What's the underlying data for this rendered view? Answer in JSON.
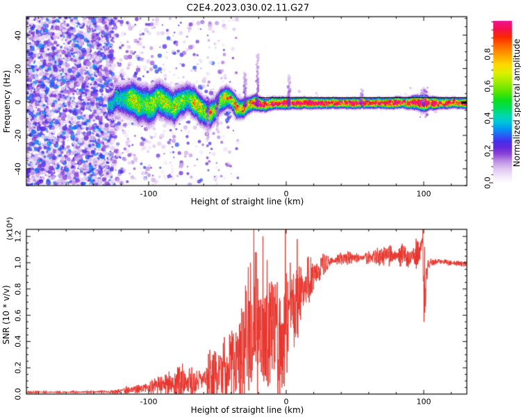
{
  "title": "C2E4.2023.030.02.11.G27",
  "colors": {
    "background": "#ffffff",
    "axis": "#000000",
    "snr_line_red": "#e8342c",
    "zero_trace_black": "#000000",
    "noise_purple": "#7a2fd2"
  },
  "top_plot": {
    "ylabel": "Frequency (Hz)",
    "xlabel": "Height of straight line (km)",
    "xlim": [
      -189,
      131
    ],
    "ylim": [
      -50,
      51
    ],
    "xticks_major": [
      -100,
      0,
      100
    ],
    "xtick_labels": [
      "-100",
      "0",
      "100"
    ],
    "xtick_minor_step": 20,
    "yticks_major": [
      -40,
      -20,
      0,
      20,
      40
    ],
    "ytick_labels": [
      "-40",
      "-20",
      "0",
      "20",
      "40"
    ],
    "ytick_minor_step": 5
  },
  "colorbar": {
    "label": "Normalized spectral amplitude",
    "tick_values": [
      0.0,
      0.2,
      0.4,
      0.6,
      0.8
    ],
    "tick_labels": [
      "0.0",
      "0.2",
      "0.4",
      "0.6",
      "0.8"
    ],
    "minor_step": 0.05,
    "range": [
      0,
      1
    ],
    "stops": [
      [
        0.0,
        "#ffffff"
      ],
      [
        0.04,
        "#f4ebfa"
      ],
      [
        0.09,
        "#dfc6f1"
      ],
      [
        0.14,
        "#b98ae3"
      ],
      [
        0.18,
        "#8f46d8"
      ],
      [
        0.22,
        "#6428dc"
      ],
      [
        0.26,
        "#4530ee"
      ],
      [
        0.3,
        "#2565f5"
      ],
      [
        0.34,
        "#009cf0"
      ],
      [
        0.38,
        "#00c8da"
      ],
      [
        0.42,
        "#00d8a8"
      ],
      [
        0.46,
        "#00dc60"
      ],
      [
        0.51,
        "#0ae020"
      ],
      [
        0.56,
        "#52e400"
      ],
      [
        0.62,
        "#9cec00"
      ],
      [
        0.68,
        "#dff000"
      ],
      [
        0.73,
        "#ffd800"
      ],
      [
        0.79,
        "#ffa000"
      ],
      [
        0.85,
        "#ff6400"
      ],
      [
        0.9,
        "#fa2800"
      ],
      [
        0.95,
        "#f5104c"
      ],
      [
        1.0,
        "#ee1492"
      ]
    ]
  },
  "bottom_plot": {
    "ylabel": "SNR (10 * v/v)",
    "y_unit": "(x10⁴)",
    "xlabel": "Height of straight line (km)",
    "xlim": [
      -189,
      131
    ],
    "ylim": [
      0,
      1.254
    ],
    "xticks_major": [
      -100,
      0,
      100
    ],
    "xtick_labels": [
      "-100",
      "0",
      "100"
    ],
    "xtick_minor_step": 20,
    "yticks_major": [
      0.0,
      0.2,
      0.4,
      0.6,
      0.8,
      1.0,
      1.2
    ],
    "ytick_labels": [
      "0.0",
      "0.2",
      "0.4",
      "0.6",
      "0.8",
      "1.0",
      "1.2"
    ],
    "ytick_minor_step": 0.05
  },
  "chart_data": [
    {
      "type": "heatmap",
      "title": "C2E4.2023.030.02.11.G27",
      "xlabel": "Height of straight line (km)",
      "ylabel": "Frequency (Hz)",
      "xlim": [
        -189,
        131
      ],
      "ylim": [
        -50,
        51
      ],
      "grid": false,
      "colorbar_label": "Normalized spectral amplitude",
      "colorbar_range": [
        0,
        1
      ],
      "noise_region": {
        "x_range_dense": [
          -189,
          -127
        ],
        "x_range_fading": [
          -127,
          -35
        ],
        "amplitude_range": [
          0.04,
          0.34
        ],
        "description": "full-band purple speckle noise, dense left of -127 km, fading to -35 km"
      },
      "echo_trace": [
        {
          "x": -130,
          "f": -0.5,
          "w": 5.0,
          "a": 0.38
        },
        {
          "x": -124,
          "f": 0.5,
          "w": 7.0,
          "a": 0.48
        },
        {
          "x": -118,
          "f": 1.5,
          "w": 8.0,
          "a": 0.52
        },
        {
          "x": -112,
          "f": 2.0,
          "w": 8.5,
          "a": 0.55
        },
        {
          "x": -106,
          "f": -1.0,
          "w": 9.0,
          "a": 0.55
        },
        {
          "x": -100,
          "f": -2.0,
          "w": 9.0,
          "a": 0.57
        },
        {
          "x": -94,
          "f": 1.5,
          "w": 8.5,
          "a": 0.57
        },
        {
          "x": -88,
          "f": 0.5,
          "w": 8.0,
          "a": 0.58
        },
        {
          "x": -82,
          "f": -2.5,
          "w": 8.0,
          "a": 0.6
        },
        {
          "x": -76,
          "f": 1.0,
          "w": 7.5,
          "a": 0.6
        },
        {
          "x": -70,
          "f": 2.0,
          "w": 7.0,
          "a": 0.62
        },
        {
          "x": -65,
          "f": -2.0,
          "w": 7.0,
          "a": 0.62
        },
        {
          "x": -60,
          "f": -5.5,
          "w": 7.0,
          "a": 0.62
        },
        {
          "x": -56,
          "f": -7.0,
          "w": 6.5,
          "a": 0.63
        },
        {
          "x": -52,
          "f": -4.5,
          "w": 6.0,
          "a": 0.65
        },
        {
          "x": -48,
          "f": 0.5,
          "w": 6.0,
          "a": 0.65
        },
        {
          "x": -44,
          "f": 3.0,
          "w": 5.5,
          "a": 0.68
        },
        {
          "x": -40,
          "f": 1.5,
          "w": 5.0,
          "a": 0.7
        },
        {
          "x": -36,
          "f": -3.5,
          "w": 5.0,
          "a": 0.72
        },
        {
          "x": -32,
          "f": -4.0,
          "w": 4.5,
          "a": 0.75
        },
        {
          "x": -28,
          "f": -2.0,
          "w": 4.0,
          "a": 0.8
        },
        {
          "x": -24,
          "f": -0.5,
          "w": 3.5,
          "a": 0.85
        },
        {
          "x": -20,
          "f": -1.0,
          "w": 3.2,
          "a": 0.9
        },
        {
          "x": -15,
          "f": -1.5,
          "w": 3.0,
          "a": 0.93
        },
        {
          "x": -10,
          "f": -0.5,
          "w": 2.8,
          "a": 0.95
        },
        {
          "x": -5,
          "f": -0.5,
          "w": 2.8,
          "a": 0.95
        },
        {
          "x": 0,
          "f": -0.5,
          "w": 2.6,
          "a": 0.96
        },
        {
          "x": 10,
          "f": -0.5,
          "w": 2.5,
          "a": 0.95
        },
        {
          "x": 25,
          "f": -0.5,
          "w": 2.4,
          "a": 0.95
        },
        {
          "x": 45,
          "f": -0.5,
          "w": 2.4,
          "a": 0.95
        },
        {
          "x": 65,
          "f": -0.5,
          "w": 2.4,
          "a": 0.95
        },
        {
          "x": 85,
          "f": -0.5,
          "w": 2.5,
          "a": 0.95
        },
        {
          "x": 96,
          "f": -0.5,
          "w": 3.2,
          "a": 0.96
        },
        {
          "x": 100,
          "f": -0.5,
          "w": 3.8,
          "a": 0.96
        },
        {
          "x": 104,
          "f": -0.5,
          "w": 2.9,
          "a": 0.95
        },
        {
          "x": 118,
          "f": -0.5,
          "w": 2.4,
          "a": 0.95
        },
        {
          "x": 131,
          "f": -0.5,
          "w": 2.4,
          "a": 0.95
        }
      ],
      "streaks": [
        {
          "x_km": -30,
          "f_top": 18
        },
        {
          "x_km": -21,
          "f_top": 29
        },
        {
          "x_km": 2,
          "f_top": 16
        },
        {
          "x_km": -57,
          "f_top": -24
        },
        {
          "x_km": -50,
          "f_top": -19
        },
        {
          "x_km": 99.5,
          "f_top": 9
        },
        {
          "x_km": 55,
          "f_top": 8
        }
      ],
      "zero_line": {
        "from_x": -20,
        "to_x": 131,
        "f": 2.6,
        "color": "#000000"
      }
    },
    {
      "type": "line",
      "name": "SNR",
      "color": "#e8342c",
      "xlabel": "Height of straight line (km)",
      "ylabel": "SNR (10 * v/v)",
      "y_scale_note": "(x10⁴)",
      "xlim": [
        -189,
        131
      ],
      "ylim": [
        0,
        1.254
      ],
      "grid": false,
      "legend": false,
      "envelope": [
        {
          "x": -189,
          "base": 0.015,
          "noise": 0.01
        },
        {
          "x": -150,
          "base": 0.015,
          "noise": 0.01
        },
        {
          "x": -125,
          "base": 0.018,
          "noise": 0.012
        },
        {
          "x": -115,
          "base": 0.03,
          "noise": 0.025
        },
        {
          "x": -105,
          "base": 0.04,
          "noise": 0.04
        },
        {
          "x": -95,
          "base": 0.06,
          "noise": 0.07
        },
        {
          "x": -85,
          "base": 0.08,
          "noise": 0.09
        },
        {
          "x": -75,
          "base": 0.1,
          "noise": 0.12
        },
        {
          "x": -68,
          "base": 0.09,
          "noise": 0.1
        },
        {
          "x": -60,
          "base": 0.12,
          "noise": 0.15
        },
        {
          "x": -52,
          "base": 0.15,
          "noise": 0.18
        },
        {
          "x": -45,
          "base": 0.18,
          "noise": 0.22
        },
        {
          "x": -38,
          "base": 0.25,
          "noise": 0.3
        },
        {
          "x": -30,
          "base": 0.35,
          "noise": 0.45
        },
        {
          "x": -24,
          "base": 0.45,
          "noise": 0.6
        },
        {
          "x": -18,
          "base": 0.45,
          "noise": 0.6
        },
        {
          "x": -12,
          "base": 0.5,
          "noise": 0.55
        },
        {
          "x": -6,
          "base": 0.45,
          "noise": 0.5
        },
        {
          "x": -2,
          "base": 0.35,
          "noise": 0.4
        },
        {
          "x": 0,
          "base": 0.55,
          "noise": 0.45
        },
        {
          "x": 4,
          "base": 0.6,
          "noise": 0.35
        },
        {
          "x": 8,
          "base": 0.68,
          "noise": 0.28
        },
        {
          "x": 14,
          "base": 0.8,
          "noise": 0.18
        },
        {
          "x": 20,
          "base": 0.9,
          "noise": 0.12
        },
        {
          "x": 28,
          "base": 1.0,
          "noise": 0.06
        },
        {
          "x": 40,
          "base": 1.03,
          "noise": 0.045
        },
        {
          "x": 60,
          "base": 1.04,
          "noise": 0.045
        },
        {
          "x": 72,
          "base": 1.05,
          "noise": 0.06
        },
        {
          "x": 82,
          "base": 1.06,
          "noise": 0.075
        },
        {
          "x": 92,
          "base": 1.05,
          "noise": 0.07
        },
        {
          "x": 97,
          "base": 1.08,
          "noise": 0.1
        },
        {
          "x": 99,
          "base": 1.15,
          "noise": 0.12
        },
        {
          "x": 100,
          "base": 0.8,
          "noise": 0.25
        },
        {
          "x": 101,
          "base": 0.75,
          "noise": 0.2
        },
        {
          "x": 103,
          "base": 1.0,
          "noise": 0.06
        },
        {
          "x": 108,
          "base": 1.01,
          "noise": 0.03
        },
        {
          "x": 120,
          "base": 1.0,
          "noise": 0.02
        },
        {
          "x": 131,
          "base": 0.99,
          "noise": 0.02
        }
      ],
      "spikes": [
        {
          "x": -26,
          "v": 1.0
        },
        {
          "x": -23.5,
          "v": 1.26
        },
        {
          "x": -21.5,
          "v": 0.92
        },
        {
          "x": -17,
          "v": 1.2
        },
        {
          "x": -14,
          "v": 1.02
        },
        {
          "x": -0.6,
          "v": 1.26
        },
        {
          "x": 3,
          "v": 1.0
        },
        {
          "x": 8,
          "v": 1.18
        },
        {
          "x": 99.3,
          "v": 1.26
        },
        {
          "x": 100.1,
          "v": 0.55
        },
        {
          "x": 100.6,
          "v": 1.12
        }
      ],
      "dips": [
        {
          "x": -3.2,
          "v": 0.05
        },
        {
          "x": -2.2,
          "v": 0.08
        },
        {
          "x": -1.2,
          "v": 0.06
        },
        {
          "x": 100.9,
          "v": 0.62
        }
      ]
    }
  ]
}
